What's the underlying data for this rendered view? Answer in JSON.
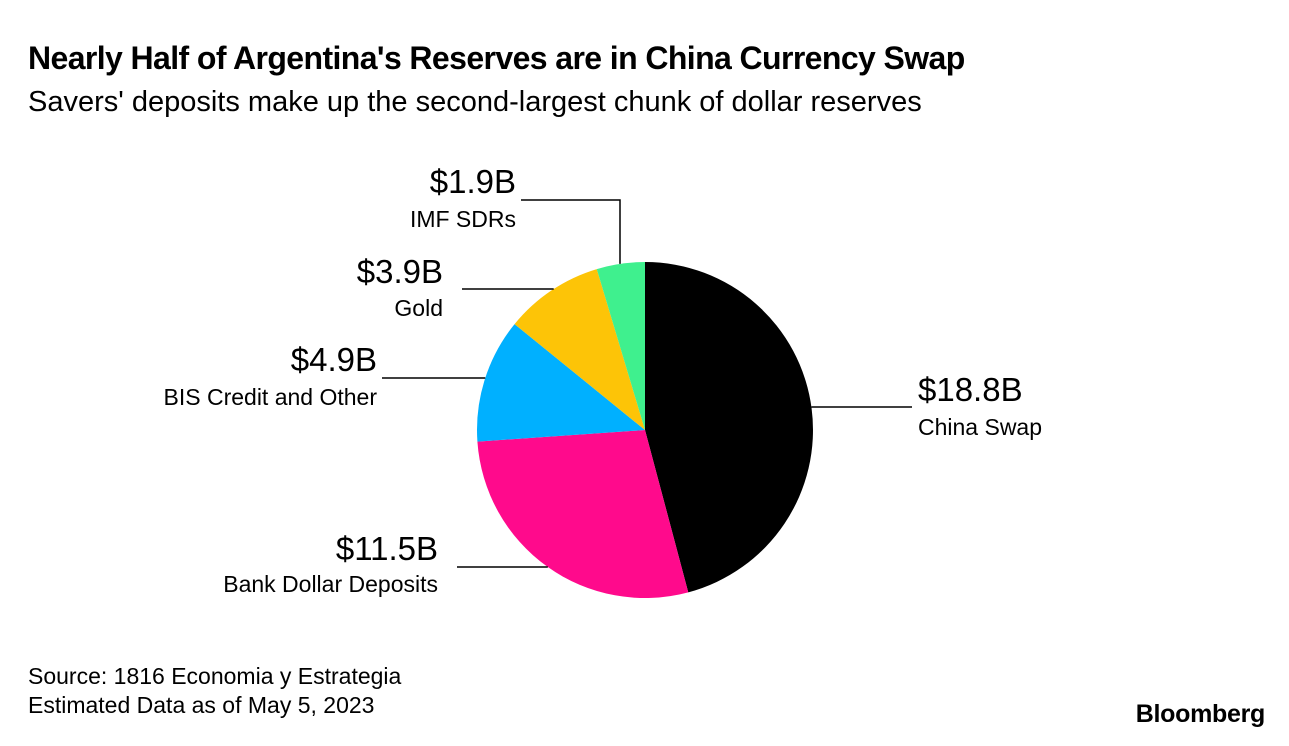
{
  "header": {
    "title": "Nearly Half of Argentina's Reserves are in China Currency Swap",
    "subtitle": "Savers' deposits make up the second-largest chunk of dollar reserves"
  },
  "footer": {
    "source": "Source: 1816 Economia y Estrategia",
    "note": "Estimated Data as of May 5, 2023"
  },
  "brand": {
    "logo_text": "Bloomberg"
  },
  "chart_data": {
    "type": "pie",
    "title": "Nearly Half of Argentina's Reserves are in China Currency Swap",
    "subtitle": "Savers' deposits make up the second-largest chunk of dollar reserves",
    "unit": "USD billions",
    "slices": [
      {
        "name": "China Swap",
        "value": 18.8,
        "label": "$18.8B",
        "color": "#000000"
      },
      {
        "name": "Bank Dollar Deposits",
        "value": 11.5,
        "label": "$11.5B",
        "color": "#ff0a8c"
      },
      {
        "name": "BIS Credit and Other",
        "value": 4.9,
        "label": "$4.9B",
        "color": "#00b0ff"
      },
      {
        "name": "Gold",
        "value": 3.9,
        "label": "$3.9B",
        "color": "#fdc407"
      },
      {
        "name": "IMF SDRs",
        "value": 1.9,
        "label": "$1.9B",
        "color": "#3ff08e"
      }
    ],
    "start_angle": "12 o'clock",
    "direction": "clockwise",
    "legend": "none, direct labels with leader lines"
  }
}
